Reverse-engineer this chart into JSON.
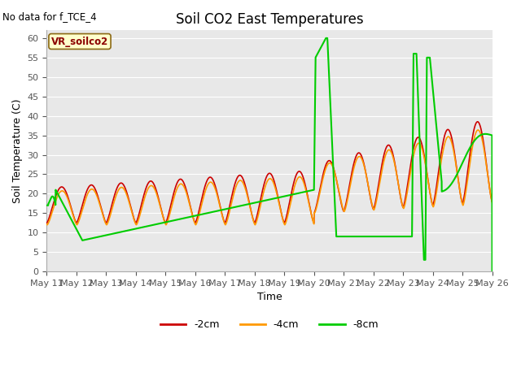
{
  "title": "Soil CO2 East Temperatures",
  "no_data_text": "No data for f_TCE_4",
  "ylabel": "Soil Temperature (C)",
  "xlabel": "Time",
  "annotation": "VR_soilco2",
  "ylim": [
    0,
    62
  ],
  "yticks": [
    0,
    5,
    10,
    15,
    20,
    25,
    30,
    35,
    40,
    45,
    50,
    55,
    60
  ],
  "bg_color": "#e8e8e8",
  "line_colors": {
    "-2cm": "#cc0000",
    "-4cm": "#ff9900",
    "-8cm": "#00cc00"
  },
  "legend_labels": [
    "-2cm",
    "-4cm",
    "-8cm"
  ],
  "x_tick_labels": [
    "May 11",
    "May 12",
    "May 13",
    "May 14",
    "May 15",
    "May 16",
    "May 17",
    "May 18",
    "May 19",
    "May 20",
    "May 21",
    "May 22",
    "May 23",
    "May 24",
    "May 25",
    "May 26"
  ],
  "figsize": [
    6.4,
    4.8
  ],
  "dpi": 100
}
